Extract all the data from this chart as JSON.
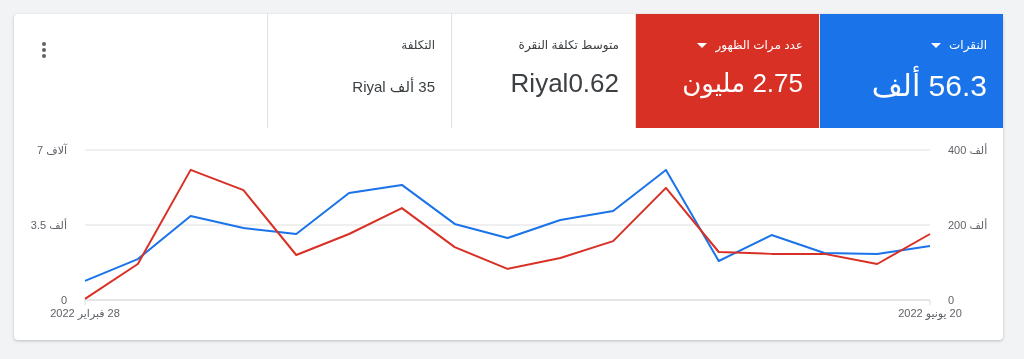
{
  "chart_data": [
    {
      "type": "other",
      "categories": [
        "النقرات",
        "عدد مرات الظهور",
        "متوسط تكلفة النقرة",
        "التكلفة"
      ],
      "value_labels": [
        "56.3 ألف",
        "2.75 مليون",
        "Riyal0.62",
        "35 ألف Riyal"
      ],
      "colors": [
        "#1a73e8",
        "#d93025",
        "#ffffff",
        "#ffffff"
      ]
    },
    {
      "type": "line",
      "x": [
        "2022-02-28",
        "2022-03-07",
        "2022-03-14",
        "2022-03-21",
        "2022-03-28",
        "2022-04-04",
        "2022-04-11",
        "2022-04-18",
        "2022-04-25",
        "2022-05-02",
        "2022-05-09",
        "2022-05-16",
        "2022-05-23",
        "2022-05-30",
        "2022-06-06",
        "2022-06-13",
        "2022-06-20"
      ],
      "series": [
        {
          "color": "#1a73e8",
          "axis": "y",
          "values": [
            0.89,
            1.91,
            3.92,
            3.36,
            3.08,
            4.99,
            5.37,
            3.55,
            2.89,
            3.73,
            4.15,
            6.07,
            1.82,
            3.03,
            2.19,
            2.15,
            2.52
          ]
        },
        {
          "color": "#d93025",
          "axis": "y2",
          "values": [
            3,
            96,
            347,
            293,
            120,
            176,
            245,
            141,
            83,
            112,
            157,
            299,
            128,
            123,
            123,
            96,
            176
          ]
        }
      ],
      "xlim": [
        "2022-02-28",
        "2022-06-20"
      ],
      "xticks": [
        {
          "value": "2022-02-28",
          "label": "28 فبراير 2022"
        },
        {
          "value": "2022-06-20",
          "label": "20 يونيو 2022"
        }
      ],
      "ylim": [
        0,
        7
      ],
      "yticks": [
        0,
        {
          "value": 3.5,
          "label": "3.5 ألف"
        },
        {
          "value": 7,
          "label": "7 آلاف"
        }
      ],
      "y2lim": [
        0,
        400
      ],
      "y2ticks": [
        0,
        {
          "value": 200,
          "label": "200 ألف"
        },
        {
          "value": 400,
          "label": "400 ألف"
        }
      ],
      "grid": "y",
      "marker": "none",
      "line_style": "solid"
    }
  ]
}
